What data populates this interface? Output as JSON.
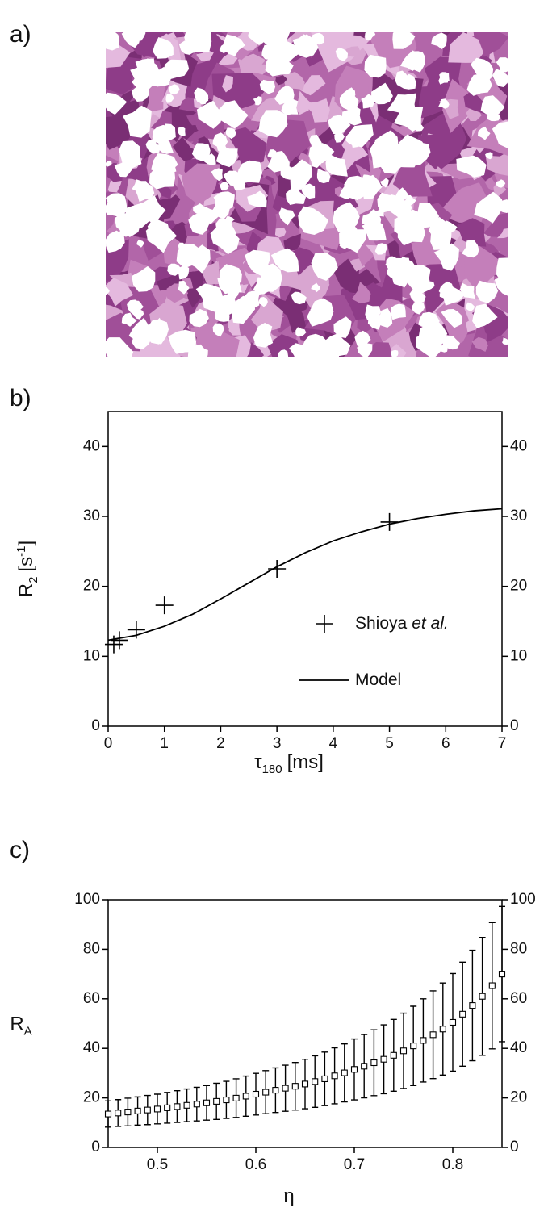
{
  "panel_labels": [
    "a)",
    "b)",
    "c)"
  ],
  "chart_data": [
    {
      "type": "line",
      "xlim": [
        0,
        7
      ],
      "ylim": [
        0,
        45
      ],
      "xticks": [
        0,
        1,
        2,
        3,
        4,
        5,
        6,
        7
      ],
      "yticks": [
        0,
        10,
        20,
        30,
        40
      ],
      "right_axis": true,
      "xlabel": {
        "symbol": "τ",
        "sub": "180",
        "unit": "[ms]"
      },
      "ylabel": {
        "symbol": "R",
        "sub": "2",
        "unit": "[s",
        "sup": "-1",
        "close": "]"
      },
      "legend": "lower right",
      "series": [
        {
          "name": "Shioya",
          "name_italic": "et al.",
          "marker": "cross",
          "color": "#000000",
          "x": [
            0.1,
            0.2,
            0.5,
            1,
            3,
            5
          ],
          "values": [
            11.7,
            12.3,
            13.8,
            17.3,
            22.5,
            29.2
          ]
        },
        {
          "name": "Model",
          "marker": "none",
          "color": "#000000",
          "x": [
            0,
            0.5,
            1,
            1.5,
            2,
            2.5,
            3,
            3.5,
            4,
            4.5,
            5,
            5.5,
            6,
            6.5,
            7
          ],
          "values": [
            12.3,
            13.0,
            14.3,
            16.0,
            18.2,
            20.5,
            22.8,
            24.8,
            26.5,
            27.8,
            28.9,
            29.7,
            30.3,
            30.8,
            31.1
          ]
        }
      ]
    },
    {
      "type": "errorbar",
      "xlim": [
        0.45,
        0.85
      ],
      "ylim": [
        0,
        100
      ],
      "xticks": [
        0.5,
        0.6,
        0.7,
        0.8
      ],
      "yticks": [
        0,
        20,
        40,
        60,
        80,
        100
      ],
      "right_axis": true,
      "xlabel": {
        "symbol": "η"
      },
      "ylabel": {
        "symbol": "R",
        "sub": "A"
      },
      "series": [
        {
          "marker": "square",
          "color": "#000000",
          "x": [
            0.45,
            0.46,
            0.47,
            0.48,
            0.49,
            0.5,
            0.51,
            0.52,
            0.53,
            0.54,
            0.55,
            0.56,
            0.57,
            0.58,
            0.59,
            0.6,
            0.61,
            0.62,
            0.63,
            0.64,
            0.65,
            0.66,
            0.67,
            0.68,
            0.69,
            0.7,
            0.71,
            0.72,
            0.73,
            0.74,
            0.75,
            0.76,
            0.77,
            0.78,
            0.79,
            0.8,
            0.81,
            0.82,
            0.83,
            0.84,
            0.85
          ],
          "values": [
            13.5,
            13.9,
            14.3,
            14.7,
            15.1,
            15.5,
            16.0,
            16.5,
            17.0,
            17.5,
            18.0,
            18.6,
            19.2,
            19.9,
            20.7,
            21.5,
            22.3,
            23.1,
            23.9,
            24.7,
            25.6,
            26.6,
            27.7,
            28.9,
            30.1,
            31.5,
            32.8,
            34.2,
            35.6,
            37.2,
            39.0,
            41.0,
            43.2,
            45.5,
            47.8,
            50.5,
            53.8,
            57.3,
            61.0,
            65.3,
            70.0
          ],
          "errors": [
            5.3,
            5.4,
            5.6,
            5.7,
            5.9,
            6.0,
            6.2,
            6.4,
            6.6,
            6.8,
            7.0,
            7.3,
            7.5,
            7.8,
            8.1,
            8.4,
            8.7,
            9.0,
            9.3,
            9.6,
            10.0,
            10.4,
            10.8,
            11.3,
            11.7,
            12.3,
            12.8,
            13.3,
            13.9,
            14.5,
            15.2,
            16.0,
            16.8,
            17.7,
            18.6,
            19.7,
            21.0,
            22.3,
            23.8,
            25.5,
            27.3
          ]
        }
      ]
    }
  ]
}
